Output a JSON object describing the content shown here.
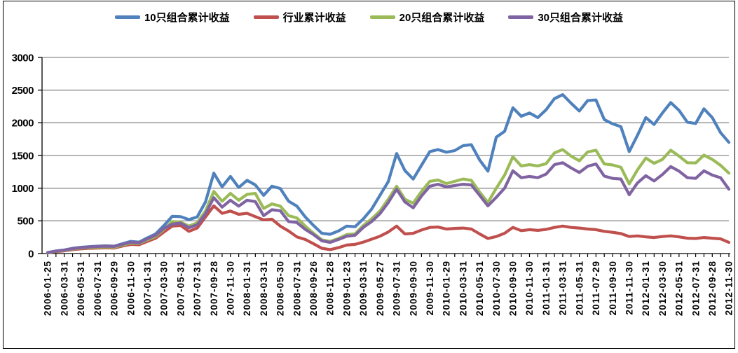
{
  "chart_data": {
    "type": "line",
    "title": "",
    "xlabel": "",
    "ylabel": "",
    "ylim": [
      0,
      3000
    ],
    "y_ticks": [
      0,
      500,
      1000,
      1500,
      2000,
      2500,
      3000
    ],
    "grid": true,
    "legend_position": "top",
    "x_labels": [
      "2006-01-25",
      "2006-03-31",
      "2006-05-31",
      "2006-07-31",
      "2006-09-29",
      "2006-11-30",
      "2007-01-31",
      "2007-03-30",
      "2007-05-31",
      "2007-07-31",
      "2007-09-28",
      "2007-11-30",
      "2008-01-31",
      "2008-03-31",
      "2008-05-30",
      "2008-07-31",
      "2008-09-26",
      "2008-11-28",
      "2009-01-23",
      "2009-03-31",
      "2009-05-27",
      "2009-07-31",
      "2009-09-30",
      "2009-11-30",
      "2010-01-29",
      "2010-03-31",
      "2010-05-31",
      "2010-07-30",
      "2010-09-30",
      "2010-11-30",
      "2011-01-31",
      "2011-03-31",
      "2011-05-31",
      "2011-07-29",
      "2011-09-30",
      "2011-11-30",
      "2012-01-31",
      "2012-03-30",
      "2012-05-31",
      "2012-07-31",
      "2012-09-28",
      "2012-11-30"
    ],
    "x_labels_note": "labels mark every 2nd monthly data point",
    "series": [
      {
        "name": "10只组合累计收益",
        "color": "#4F81BD",
        "values": [
          15,
          40,
          55,
          80,
          95,
          105,
          112,
          118,
          112,
          150,
          185,
          175,
          240,
          300,
          430,
          570,
          565,
          520,
          560,
          790,
          1230,
          1020,
          1180,
          1010,
          1120,
          1050,
          890,
          1030,
          995,
          800,
          725,
          560,
          430,
          310,
          295,
          345,
          420,
          410,
          530,
          680,
          890,
          1100,
          1530,
          1270,
          1140,
          1350,
          1560,
          1590,
          1550,
          1575,
          1650,
          1665,
          1430,
          1260,
          1780,
          1870,
          2230,
          2100,
          2150,
          2080,
          2200,
          2370,
          2430,
          2300,
          2180,
          2340,
          2350,
          2050,
          1985,
          1940,
          1560,
          1810,
          2080,
          1975,
          2150,
          2310,
          2190,
          2010,
          1990,
          2215,
          2080,
          1850,
          1700
        ]
      },
      {
        "name": "行业累计收益",
        "color": "#C0504D",
        "values": [
          10,
          30,
          42,
          60,
          72,
          80,
          85,
          88,
          85,
          115,
          140,
          135,
          185,
          235,
          330,
          420,
          430,
          340,
          390,
          560,
          730,
          615,
          650,
          600,
          615,
          565,
          515,
          525,
          420,
          345,
          255,
          215,
          150,
          80,
          60,
          90,
          130,
          140,
          175,
          220,
          265,
          330,
          420,
          300,
          310,
          360,
          400,
          405,
          375,
          385,
          390,
          375,
          300,
          230,
          260,
          310,
          400,
          350,
          365,
          355,
          370,
          400,
          420,
          400,
          390,
          375,
          365,
          340,
          325,
          305,
          260,
          270,
          255,
          245,
          260,
          270,
          255,
          235,
          230,
          245,
          235,
          225,
          170
        ]
      },
      {
        "name": "20只组合累计收益",
        "color": "#9BBB59",
        "values": [
          12,
          35,
          48,
          70,
          85,
          92,
          98,
          100,
          96,
          130,
          160,
          155,
          210,
          262,
          370,
          490,
          480,
          420,
          470,
          650,
          950,
          800,
          920,
          815,
          905,
          920,
          690,
          760,
          725,
          580,
          545,
          420,
          310,
          210,
          185,
          230,
          290,
          300,
          430,
          530,
          650,
          830,
          1030,
          830,
          770,
          950,
          1105,
          1125,
          1070,
          1105,
          1140,
          1120,
          940,
          780,
          1000,
          1200,
          1480,
          1340,
          1360,
          1340,
          1375,
          1540,
          1590,
          1490,
          1420,
          1555,
          1580,
          1370,
          1355,
          1320,
          1065,
          1280,
          1460,
          1380,
          1440,
          1580,
          1490,
          1390,
          1385,
          1505,
          1440,
          1350,
          1230
        ]
      },
      {
        "name": "30只组合累计收益",
        "color": "#8064A2",
        "values": [
          14,
          38,
          52,
          75,
          90,
          100,
          108,
          112,
          108,
          140,
          172,
          165,
          225,
          280,
          385,
          450,
          465,
          395,
          440,
          610,
          855,
          710,
          815,
          725,
          815,
          795,
          580,
          670,
          655,
          490,
          475,
          370,
          290,
          195,
          170,
          215,
          265,
          280,
          400,
          490,
          610,
          780,
          985,
          790,
          700,
          880,
          1030,
          1060,
          1020,
          1040,
          1060,
          1050,
          890,
          730,
          860,
          1000,
          1265,
          1160,
          1180,
          1160,
          1215,
          1360,
          1390,
          1310,
          1240,
          1335,
          1370,
          1185,
          1150,
          1140,
          900,
          1080,
          1190,
          1110,
          1210,
          1330,
          1260,
          1160,
          1150,
          1265,
          1200,
          1160,
          985
        ]
      }
    ],
    "colors": {
      "grid": "#8C8C8C",
      "axis": "#000000",
      "background": "#FFFFFF"
    }
  }
}
